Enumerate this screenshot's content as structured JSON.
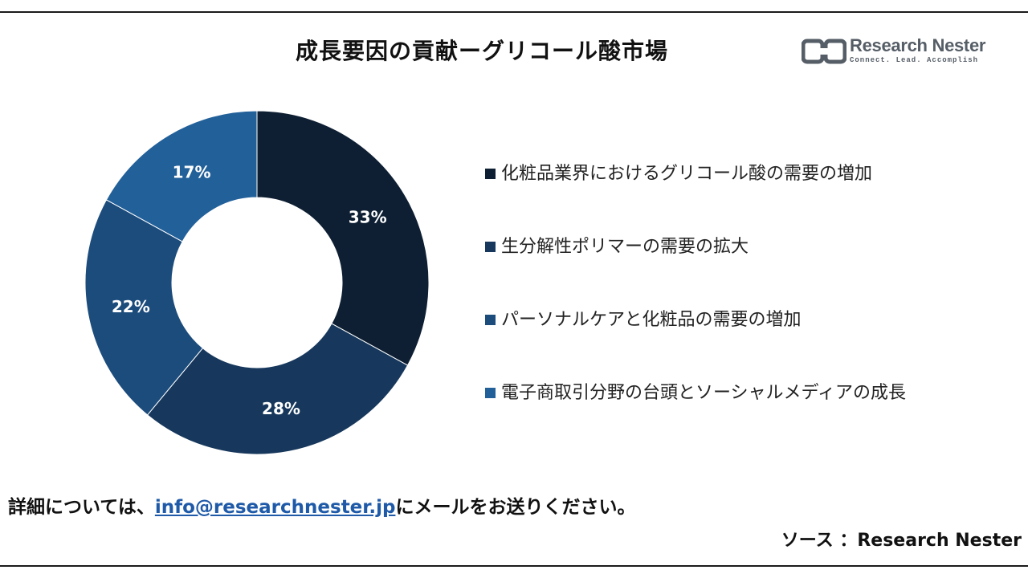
{
  "header": {
    "title": "成長要因の貢献ーグリコール酸市場"
  },
  "logo": {
    "name": "Research Nester",
    "tagline": "Connect. Lead. Accomplish"
  },
  "chart_data": {
    "type": "pie",
    "donut": true,
    "categories": [
      "化粧品業界におけるグリコール酸の需要の増加",
      "生分解性ポリマーの需要の拡大",
      "パーソナルケアと化粧品の需要の増加",
      "電子商取引分野の台頭とソーシャルメディアの成長"
    ],
    "values": [
      33,
      28,
      22,
      17
    ],
    "value_labels": [
      "33%",
      "28%",
      "22%",
      "17%"
    ],
    "colors": [
      "#0e1f33",
      "#17385c",
      "#1c4c7c",
      "#22609a"
    ],
    "legend_colors": [
      "#0e1f33",
      "#17385c",
      "#1c4c7c",
      "#22609a"
    ],
    "legend_position": "right"
  },
  "footer": {
    "prefix": "詳細については、",
    "email": "info@researchnester.jp",
    "suffix": "にメールをお送りください。"
  },
  "source": {
    "text": "ソース ：Research Nester"
  }
}
